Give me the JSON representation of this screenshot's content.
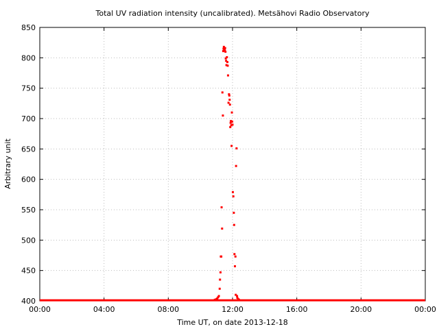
{
  "chart_data": {
    "type": "scatter",
    "title": "Total UV radiation intensity (uncalibrated). Metsähovi Radio Observatory",
    "xlabel": "Time UT, on date 2013-12-18",
    "ylabel": "Arbitrary unit",
    "xlim": [
      0,
      24
    ],
    "ylim": [
      400,
      850
    ],
    "x_ticks": [
      0,
      4,
      8,
      12,
      16,
      20,
      24
    ],
    "x_tick_labels": [
      "00:00",
      "04:00",
      "08:00",
      "12:00",
      "16:00",
      "20:00",
      "00:00"
    ],
    "y_ticks": [
      400,
      450,
      500,
      550,
      600,
      650,
      700,
      750,
      800,
      850
    ],
    "y_tick_labels": [
      "400",
      "450",
      "500",
      "550",
      "600",
      "650",
      "700",
      "750",
      "800",
      "850"
    ],
    "grid": true,
    "marker_color": "#ff0000",
    "baseline": {
      "x_start": 0.0,
      "x_end": 24.0,
      "y": 401
    },
    "points": {
      "x": [
        10.9,
        11.0,
        11.05,
        11.1,
        11.15,
        11.2,
        11.22,
        11.25,
        11.27,
        11.3,
        11.32,
        11.35,
        11.37,
        11.4,
        11.42,
        11.44,
        11.46,
        11.48,
        11.5,
        11.52,
        11.54,
        11.56,
        11.58,
        11.6,
        11.62,
        11.65,
        11.68,
        11.7,
        11.72,
        11.75,
        11.78,
        11.8,
        11.82,
        11.84,
        11.86,
        11.88,
        11.9,
        11.92,
        11.94,
        11.96,
        11.98,
        12.0,
        12.02,
        12.05,
        12.08,
        12.1,
        12.12,
        12.15,
        12.18,
        12.2,
        12.22,
        12.25,
        12.28,
        12.3,
        12.35,
        12.4
      ],
      "y": [
        402,
        403,
        404,
        406,
        408,
        420,
        435,
        447,
        473,
        473,
        554,
        519,
        743,
        705,
        811,
        815,
        818,
        813,
        815,
        812,
        816,
        810,
        799,
        795,
        788,
        801,
        793,
        787,
        771,
        726,
        740,
        738,
        731,
        723,
        686,
        693,
        696,
        689,
        655,
        710,
        695,
        690,
        579,
        572,
        545,
        525,
        477,
        457,
        473,
        410,
        622,
        651,
        408,
        405,
        403,
        402
      ]
    }
  }
}
